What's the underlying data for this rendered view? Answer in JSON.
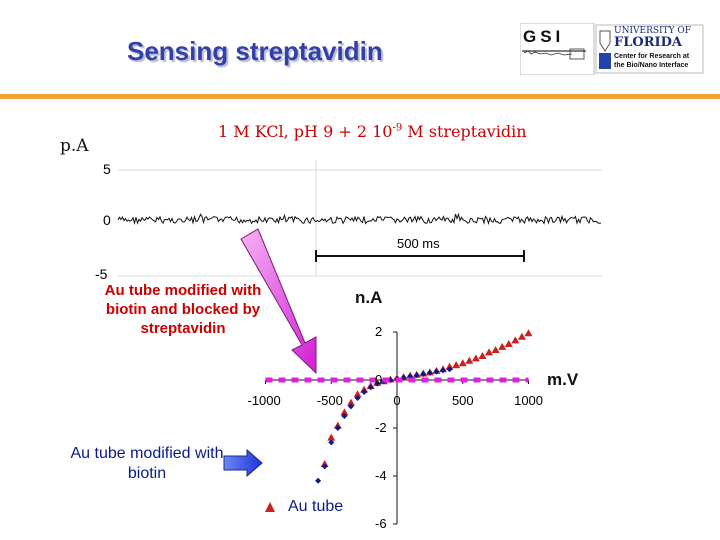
{
  "slide": {
    "title": "Sensing streptavidin",
    "logos": {
      "gsi": "GSI",
      "uf_line1": "UNIVERSITY OF",
      "uf_line2": "FLORIDA",
      "uf_center1": "Center for Research at",
      "uf_center2": "the Bio/Nano Interface"
    }
  },
  "trace_chart": {
    "y_unit": "p.A",
    "condition": "1 M KCl, pH 9 + 2 10",
    "condition_exp": "-9",
    "condition_tail": " M streptavidin",
    "y_ticks": [
      "5",
      "0",
      "-5"
    ],
    "scale_bar": "500 ms"
  },
  "chart_data": {
    "type": "scatter",
    "x_label": "m.V",
    "y_label": "n.A",
    "x_ticks": [
      "-1000",
      "-500",
      "0",
      "500",
      "1000"
    ],
    "y_ticks": [
      "2",
      "0",
      "-2",
      "-4",
      "-6"
    ],
    "xlim": [
      -1000,
      1000
    ],
    "ylim": [
      -6,
      2
    ],
    "series": [
      {
        "name": "Au tube",
        "color": "#cc1f1f",
        "marker": "triangle",
        "x": [
          -550,
          -500,
          -450,
          -400,
          -350,
          -300,
          -250,
          -200,
          -150,
          -100,
          -50,
          0,
          50,
          100,
          150,
          200,
          250,
          300,
          350,
          400,
          450,
          500,
          550,
          600,
          650,
          700,
          750,
          800,
          850,
          900,
          950,
          1000
        ],
        "y": [
          -3.5,
          -2.4,
          -1.9,
          -1.35,
          -0.95,
          -0.6,
          -0.4,
          -0.25,
          -0.12,
          -0.05,
          0.02,
          0.08,
          0.12,
          0.18,
          0.22,
          0.27,
          0.32,
          0.38,
          0.45,
          0.55,
          0.62,
          0.7,
          0.8,
          0.9,
          1.0,
          1.15,
          1.25,
          1.38,
          1.5,
          1.65,
          1.8,
          1.95
        ]
      },
      {
        "name": "Au tube modified with biotin",
        "color": "#0a1a8c",
        "marker": "diamond",
        "x": [
          -600,
          -550,
          -500,
          -450,
          -400,
          -350,
          -300,
          -250,
          -200,
          -150,
          -100,
          -50,
          0,
          50,
          100,
          150,
          200,
          250,
          300,
          350,
          400
        ],
        "y": [
          -4.2,
          -3.6,
          -2.6,
          -2.0,
          -1.5,
          -1.1,
          -0.75,
          -0.5,
          -0.3,
          -0.15,
          -0.05,
          0.0,
          0.05,
          0.1,
          0.15,
          0.2,
          0.25,
          0.3,
          0.35,
          0.4,
          0.45
        ]
      },
      {
        "name": "Au tube modified with biotin and blocked by streptavidin",
        "color": "#e020e0",
        "marker": "dashed-line",
        "x": [
          -1000,
          1000
        ],
        "y": [
          0,
          0
        ]
      }
    ]
  },
  "annotations": {
    "blocked": "Au tube modified with biotin and blocked by streptavidin",
    "biotin": "Au tube modified with biotin",
    "au_tube": "Au tube"
  }
}
